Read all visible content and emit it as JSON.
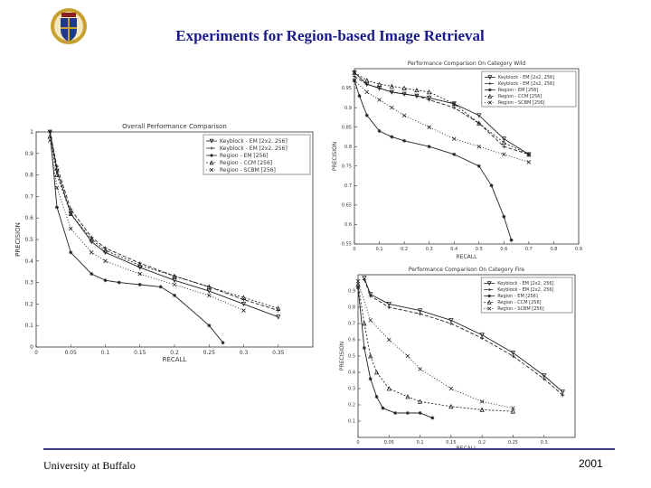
{
  "slide": {
    "title": "Experiments for Region-based Image Retrieval",
    "footer_left": "University at Buffalo",
    "footer_right": "2001"
  },
  "colors": {
    "title": "#1a1a8a",
    "logo_blue": "#1f3a8a",
    "logo_gold": "#c8a030"
  },
  "chart_data": [
    {
      "type": "line",
      "id": "left",
      "title": "Overall Performance Comparison",
      "xlabel": "RECALL",
      "ylabel": "PRECISION",
      "xlim": [
        0,
        0.4
      ],
      "ylim": [
        0,
        1
      ],
      "xticks": [
        "0",
        "0.05",
        "0.1",
        "0.15",
        "0.2",
        "0.25",
        "0.3",
        "0.35"
      ],
      "xtick_values": [
        0,
        0.05,
        0.1,
        0.15,
        0.2,
        0.25,
        0.3,
        0.35
      ],
      "yticks": [
        "0",
        "0.1",
        "0.2",
        "0.3",
        "0.4",
        "0.5",
        "0.6",
        "0.7",
        "0.8",
        "0.9",
        "1"
      ],
      "ytick_values": [
        0,
        0.1,
        0.2,
        0.3,
        0.4,
        0.5,
        0.6,
        0.7,
        0.8,
        0.9,
        1
      ],
      "legend_position": "top-right",
      "series": [
        {
          "name": "Keyblock - EM [2x2, 256]",
          "marker": "triangle-down",
          "x": [
            0.02,
            0.03,
            0.05,
            0.08,
            0.1,
            0.15,
            0.2,
            0.25,
            0.3,
            0.35
          ],
          "y": [
            1.0,
            0.82,
            0.62,
            0.49,
            0.44,
            0.37,
            0.31,
            0.26,
            0.2,
            0.14
          ]
        },
        {
          "name": "Keyblock - EM [2x2, 256]",
          "marker": "plus",
          "x": [
            0.02,
            0.03,
            0.05,
            0.08,
            0.1,
            0.15,
            0.2,
            0.25,
            0.3,
            0.35
          ],
          "y": [
            1.0,
            0.84,
            0.64,
            0.51,
            0.46,
            0.39,
            0.33,
            0.28,
            0.22,
            0.17
          ]
        },
        {
          "name": "Region - EM [256]",
          "marker": "star",
          "x": [
            0.02,
            0.03,
            0.05,
            0.08,
            0.1,
            0.12,
            0.15,
            0.18,
            0.2,
            0.25,
            0.27
          ],
          "y": [
            1.0,
            0.65,
            0.44,
            0.34,
            0.31,
            0.3,
            0.29,
            0.28,
            0.24,
            0.1,
            0.02
          ]
        },
        {
          "name": "Region - CCM [256]",
          "marker": "triangle-up",
          "x": [
            0.02,
            0.03,
            0.05,
            0.08,
            0.1,
            0.15,
            0.2,
            0.25,
            0.3,
            0.35
          ],
          "y": [
            0.98,
            0.8,
            0.62,
            0.5,
            0.45,
            0.38,
            0.33,
            0.28,
            0.23,
            0.18
          ]
        },
        {
          "name": "Region - SCBM [256]",
          "marker": "x",
          "x": [
            0.02,
            0.03,
            0.05,
            0.08,
            0.1,
            0.15,
            0.2,
            0.25,
            0.3
          ],
          "y": [
            0.96,
            0.74,
            0.55,
            0.44,
            0.4,
            0.34,
            0.29,
            0.24,
            0.17
          ]
        }
      ]
    },
    {
      "type": "line",
      "id": "top-right",
      "title": "Performance Comparison On Category Wild",
      "xlabel": "RECALL",
      "ylabel": "PRECISION",
      "xlim": [
        0,
        0.9
      ],
      "ylim": [
        0.55,
        1
      ],
      "xticks": [
        "0",
        "0.1",
        "0.2",
        "0.3",
        "0.4",
        "0.5",
        "0.6",
        "0.7",
        "0.8",
        "0.9"
      ],
      "xtick_values": [
        0,
        0.1,
        0.2,
        0.3,
        0.4,
        0.5,
        0.6,
        0.7,
        0.8,
        0.9
      ],
      "yticks": [
        "0.55",
        "0.6",
        "0.65",
        "0.7",
        "0.75",
        "0.8",
        "0.85",
        "0.9",
        "0.95"
      ],
      "ytick_values": [
        0.55,
        0.6,
        0.65,
        0.7,
        0.75,
        0.8,
        0.85,
        0.9,
        0.95
      ],
      "legend_position": "top-right",
      "series": [
        {
          "name": "Keyblock - EM [2x2, 256]",
          "marker": "triangle-down",
          "x": [
            0.0,
            0.05,
            0.1,
            0.15,
            0.2,
            0.25,
            0.3,
            0.4,
            0.5,
            0.6,
            0.7
          ],
          "y": [
            0.99,
            0.96,
            0.95,
            0.94,
            0.935,
            0.93,
            0.925,
            0.91,
            0.88,
            0.82,
            0.78
          ]
        },
        {
          "name": "Keyblock - EM [2x2, 256]",
          "marker": "plus",
          "x": [
            0.0,
            0.05,
            0.1,
            0.15,
            0.2,
            0.25,
            0.3,
            0.4,
            0.5,
            0.6,
            0.7
          ],
          "y": [
            0.98,
            0.96,
            0.95,
            0.94,
            0.935,
            0.93,
            0.92,
            0.9,
            0.86,
            0.8,
            0.78
          ]
        },
        {
          "name": "Region - EM [256]",
          "marker": "star",
          "x": [
            0.0,
            0.02,
            0.05,
            0.1,
            0.15,
            0.2,
            0.3,
            0.4,
            0.5,
            0.55,
            0.6,
            0.63
          ],
          "y": [
            0.97,
            0.93,
            0.88,
            0.84,
            0.825,
            0.815,
            0.8,
            0.78,
            0.75,
            0.7,
            0.62,
            0.56
          ]
        },
        {
          "name": "Region - CCM [256]",
          "marker": "triangle-up",
          "x": [
            0.0,
            0.05,
            0.1,
            0.15,
            0.2,
            0.25,
            0.3,
            0.4,
            0.5,
            0.6,
            0.7
          ],
          "y": [
            0.99,
            0.97,
            0.96,
            0.955,
            0.95,
            0.945,
            0.94,
            0.91,
            0.86,
            0.81,
            0.78
          ]
        },
        {
          "name": "Region - SCBM [256]",
          "marker": "x",
          "x": [
            0.0,
            0.05,
            0.1,
            0.15,
            0.2,
            0.3,
            0.4,
            0.5,
            0.6,
            0.7
          ],
          "y": [
            0.97,
            0.94,
            0.92,
            0.9,
            0.88,
            0.85,
            0.82,
            0.8,
            0.78,
            0.76
          ]
        }
      ]
    },
    {
      "type": "line",
      "id": "bottom-right",
      "title": "Performance Comparison On Category Fire",
      "xlabel": "RECALL",
      "ylabel": "PRECISION",
      "xlim": [
        0,
        0.35
      ],
      "ylim": [
        0,
        1
      ],
      "xticks": [
        "0",
        "0.05",
        "0.1",
        "0.15",
        "0.2",
        "0.25",
        "0.3"
      ],
      "xtick_values": [
        0,
        0.05,
        0.1,
        0.15,
        0.2,
        0.25,
        0.3
      ],
      "yticks": [
        "0.1",
        "0.2",
        "0.3",
        "0.4",
        "0.5",
        "0.6",
        "0.7",
        "0.8",
        "0.9"
      ],
      "ytick_values": [
        0.1,
        0.2,
        0.3,
        0.4,
        0.5,
        0.6,
        0.7,
        0.8,
        0.9
      ],
      "legend_position": "top-right",
      "series": [
        {
          "name": "Keyblock - EM [2x2, 256]",
          "marker": "triangle-down",
          "x": [
            0.01,
            0.02,
            0.05,
            0.1,
            0.15,
            0.2,
            0.25,
            0.3,
            0.33
          ],
          "y": [
            0.98,
            0.88,
            0.82,
            0.78,
            0.72,
            0.63,
            0.52,
            0.38,
            0.28
          ]
        },
        {
          "name": "Keyblock - EM [2x2, 256]",
          "marker": "plus",
          "x": [
            0.01,
            0.02,
            0.05,
            0.1,
            0.15,
            0.2,
            0.25,
            0.3,
            0.33
          ],
          "y": [
            0.97,
            0.87,
            0.8,
            0.76,
            0.7,
            0.61,
            0.5,
            0.36,
            0.26
          ]
        },
        {
          "name": "Region - EM [256]",
          "marker": "star",
          "x": [
            0.0,
            0.01,
            0.02,
            0.03,
            0.04,
            0.06,
            0.08,
            0.1,
            0.12
          ],
          "y": [
            0.92,
            0.55,
            0.36,
            0.25,
            0.18,
            0.15,
            0.15,
            0.15,
            0.12
          ]
        },
        {
          "name": "Region - CCM [256]",
          "marker": "triangle-up",
          "x": [
            0.0,
            0.01,
            0.02,
            0.03,
            0.05,
            0.08,
            0.1,
            0.15,
            0.2,
            0.25
          ],
          "y": [
            0.94,
            0.7,
            0.5,
            0.4,
            0.3,
            0.25,
            0.22,
            0.19,
            0.17,
            0.16
          ]
        },
        {
          "name": "Region - SCBM [256]",
          "marker": "x",
          "x": [
            0.0,
            0.02,
            0.05,
            0.08,
            0.1,
            0.15,
            0.2,
            0.25
          ],
          "y": [
            0.96,
            0.72,
            0.6,
            0.5,
            0.42,
            0.3,
            0.22,
            0.18
          ]
        }
      ]
    }
  ]
}
